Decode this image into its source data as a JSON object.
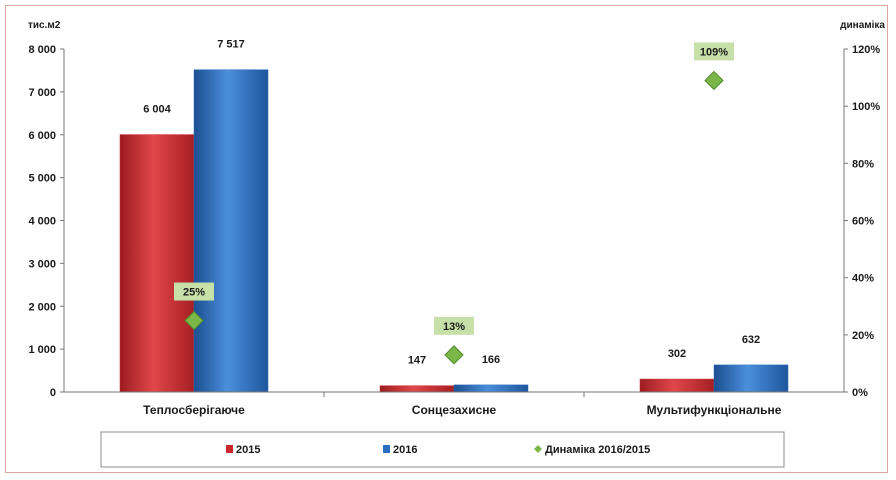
{
  "chart_data": {
    "type": "bar",
    "y_unit_label": "тис.м2",
    "y2_unit_label": "динаміка",
    "categories": [
      "Теплосберігаюче",
      "Сонцезахисне",
      "Мультифункціональне"
    ],
    "series": [
      {
        "name": "2015",
        "values": [
          6004,
          147,
          302
        ],
        "value_labels": [
          "6 004",
          "147",
          "302"
        ],
        "color": "#c8282d"
      },
      {
        "name": "2016",
        "values": [
          7517,
          166,
          632
        ],
        "value_labels": [
          "7 517",
          "166",
          "632"
        ],
        "color": "#2a6fc0"
      }
    ],
    "line_series": {
      "name": "Динаміка 2016/2015",
      "axis": "right",
      "values": [
        25,
        13,
        109
      ],
      "value_labels": [
        "25%",
        "13%",
        "109%"
      ],
      "color": "#7ab648",
      "label_bg": "#c6e0a8"
    },
    "ylim": [
      0,
      8000
    ],
    "y_ticks": [
      "0",
      "1 000",
      "2 000",
      "3 000",
      "4 000",
      "5 000",
      "6 000",
      "7 000",
      "8 000"
    ],
    "y2lim": [
      0,
      120
    ],
    "y2_ticks": [
      "0%",
      "20%",
      "40%",
      "60%",
      "80%",
      "100%",
      "120%"
    ],
    "legend": {
      "position": "bottom",
      "items": [
        "2015",
        "2016",
        "Динаміка 2016/2015"
      ]
    }
  }
}
